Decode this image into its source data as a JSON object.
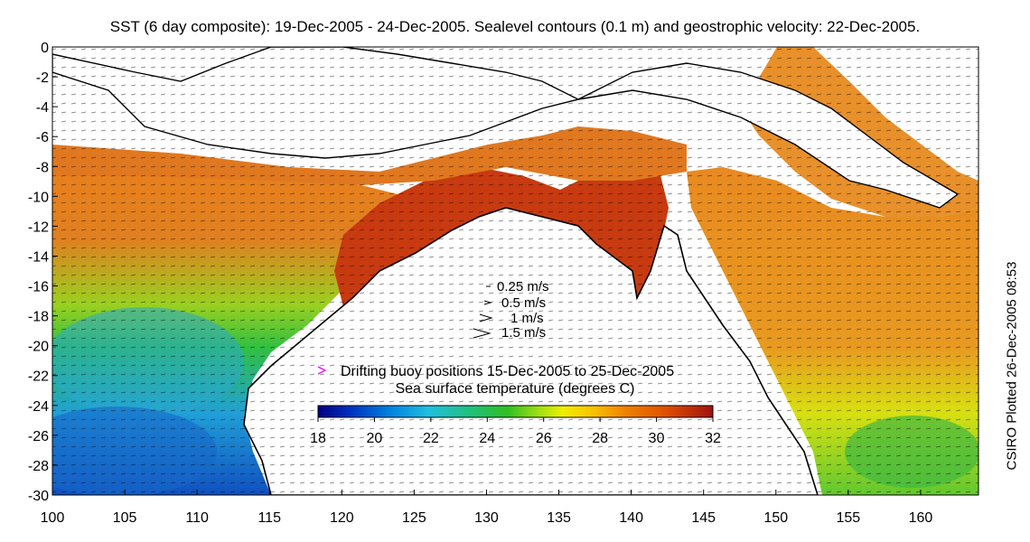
{
  "title": "SST (6 day composite): 19-Dec-2005 - 24-Dec-2005. Sealevel contours (0.1 m) and geostrophic velocity: 22-Dec-2005.",
  "credit": "CSIRO Plotted 26-Dec-2005 08:53",
  "map": {
    "lon_ticks": [
      "100",
      "105",
      "110",
      "115",
      "120",
      "125",
      "130",
      "135",
      "140",
      "145",
      "150",
      "155",
      "160"
    ],
    "lat_ticks": [
      "0",
      "-2",
      "-4",
      "-6",
      "-8",
      "-10",
      "-12",
      "-14",
      "-16",
      "-18",
      "-20",
      "-22",
      "-24",
      "-26",
      "-28",
      "-30"
    ],
    "lon_range": [
      100,
      164
    ],
    "lat_range": [
      -30,
      0
    ]
  },
  "velocity_legend": [
    {
      "label": "0.25 m/s"
    },
    {
      "label": "0.5 m/s"
    },
    {
      "label": "1 m/s"
    },
    {
      "label": "1.5 m/s"
    }
  ],
  "buoy_legend": {
    "label": "Drifting buoy positions 15-Dec-2005 to 25-Dec-2005",
    "marker_color": "#ff00ff"
  },
  "colorbar": {
    "title": "Sea surface temperature (degrees C)",
    "ticks": [
      "18",
      "20",
      "22",
      "24",
      "26",
      "28",
      "30",
      "32"
    ],
    "range": [
      18,
      32
    ],
    "colors": [
      "#000080",
      "#0030c0",
      "#0080e0",
      "#20c0e0",
      "#20c080",
      "#30c020",
      "#a0e010",
      "#f0f000",
      "#f8c000",
      "#f08000",
      "#e05000",
      "#c02000",
      "#a01010"
    ]
  }
}
